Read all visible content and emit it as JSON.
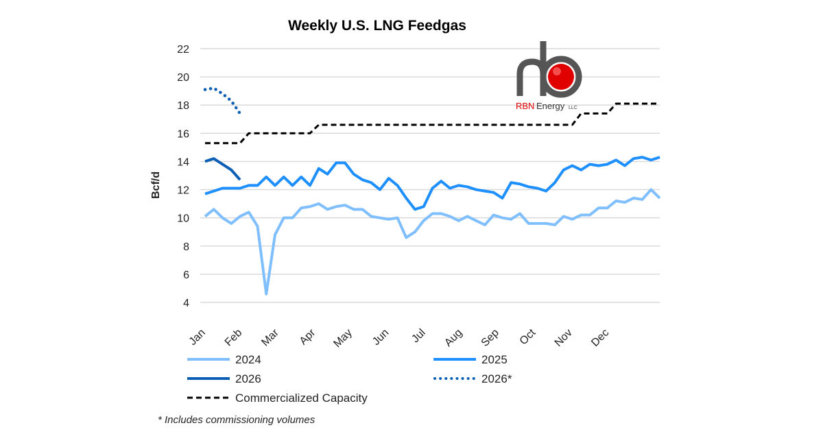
{
  "chart_data": {
    "type": "line",
    "title": "Weekly U.S. LNG Feedgas",
    "ylabel": "Bcf/d",
    "xlabel": "",
    "ylim": [
      4,
      22
    ],
    "yticks": [
      4,
      6,
      8,
      10,
      12,
      14,
      16,
      18,
      20,
      22
    ],
    "x_tick_labels": [
      "Jan",
      "Feb",
      "Mar",
      "Apr",
      "May",
      "Jun",
      "Jul",
      "Aug",
      "Sep",
      "Oct",
      "Nov",
      "Dec"
    ],
    "grid": true,
    "legend_position": "bottom",
    "footnote": "* Includes commissioning volumes",
    "x_unit": "week of year",
    "series": [
      {
        "name": "2024",
        "color": "#7fbfff",
        "style": "solid",
        "values": [
          10.1,
          10.6,
          10.0,
          9.6,
          10.1,
          10.4,
          9.4,
          4.6,
          8.8,
          10.0,
          10.0,
          10.7,
          10.8,
          11.0,
          10.6,
          10.8,
          10.9,
          10.6,
          10.6,
          10.1,
          10.0,
          9.9,
          10.0,
          8.6,
          9.0,
          9.8,
          10.3,
          10.3,
          10.1,
          9.8,
          10.1,
          9.8,
          9.5,
          10.2,
          10.0,
          9.9,
          10.3,
          9.6,
          9.6,
          9.6,
          9.5,
          10.1,
          9.9,
          10.2,
          10.2,
          10.7,
          10.7,
          11.2,
          11.1,
          11.4,
          11.3,
          12.0,
          11.4
        ]
      },
      {
        "name": "2025",
        "color": "#1e8fff",
        "style": "solid",
        "values": [
          11.7,
          11.9,
          12.1,
          12.1,
          12.1,
          12.3,
          12.3,
          12.9,
          12.3,
          12.9,
          12.3,
          12.9,
          12.3,
          13.5,
          13.1,
          13.9,
          13.9,
          13.1,
          12.7,
          12.5,
          12.0,
          12.8,
          12.3,
          11.4,
          10.6,
          10.8,
          12.1,
          12.6,
          12.1,
          12.3,
          12.2,
          12.0,
          11.9,
          11.8,
          11.4,
          12.5,
          12.4,
          12.2,
          12.1,
          11.9,
          12.5,
          13.4,
          13.7,
          13.4,
          13.8,
          13.7,
          13.8,
          14.1,
          13.7,
          14.2,
          14.3,
          14.1,
          14.3
        ]
      },
      {
        "name": "2026",
        "color": "#0b5fb5",
        "style": "solid",
        "values": [
          14.0,
          14.2,
          13.8,
          13.4,
          12.7
        ]
      },
      {
        "name": "2026*",
        "color": "#0b5fb5",
        "style": "dotted",
        "values": [
          19.1,
          19.2,
          18.8,
          18.3,
          17.4
        ]
      },
      {
        "name": "Commercialized Capacity",
        "color": "#000000",
        "style": "dashed",
        "values": [
          15.3,
          15.3,
          15.3,
          15.3,
          15.3,
          16.0,
          16.0,
          16.0,
          16.0,
          16.0,
          16.0,
          16.0,
          16.0,
          16.6,
          16.6,
          16.6,
          16.6,
          16.6,
          16.6,
          16.6,
          16.6,
          16.6,
          16.6,
          16.6,
          16.6,
          16.6,
          16.6,
          16.6,
          16.6,
          16.6,
          16.6,
          16.6,
          16.6,
          16.6,
          16.6,
          16.6,
          16.6,
          16.6,
          16.6,
          16.6,
          16.6,
          16.6,
          16.6,
          17.4,
          17.4,
          17.4,
          17.4,
          18.1,
          18.1,
          18.1,
          18.1,
          18.1,
          18.1
        ]
      }
    ]
  },
  "logo": {
    "text_rbn": "RBN",
    "text_energy": "Energy",
    "text_llc": "LLC",
    "accent": "#e00000"
  }
}
